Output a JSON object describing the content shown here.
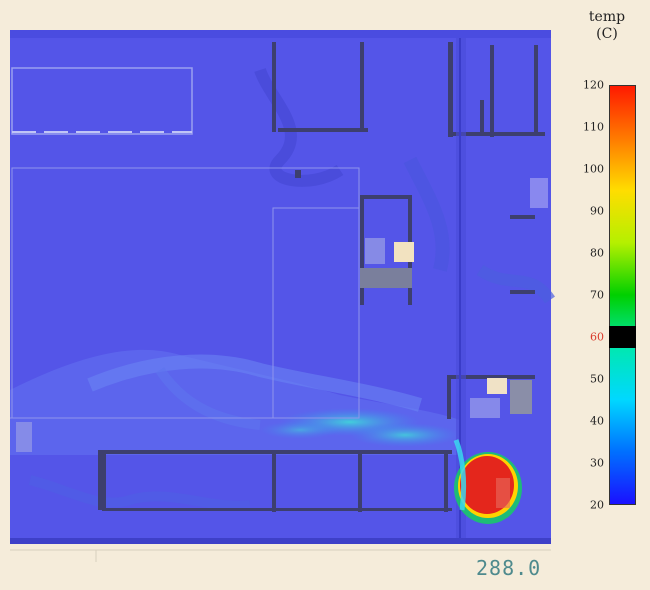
{
  "legend": {
    "title_line1": "temp",
    "title_line2": "(C)",
    "min": 20,
    "max": 120,
    "ticks": [
      {
        "label": "120",
        "value": 120
      },
      {
        "label": "110",
        "value": 110
      },
      {
        "label": "100",
        "value": 100
      },
      {
        "label": "90",
        "value": 90
      },
      {
        "label": "80",
        "value": 80
      },
      {
        "label": "70",
        "value": 70
      },
      {
        "label": "60",
        "value": 60
      },
      {
        "label": "50",
        "value": 50
      },
      {
        "label": "40",
        "value": 40
      },
      {
        "label": "30",
        "value": 30
      },
      {
        "label": "20",
        "value": 20
      }
    ],
    "highlight_value": 60,
    "highlight_color": "#d93a2b",
    "gradient_stops": [
      "#ff1a00",
      "#ff7a00",
      "#ffdd00",
      "#b5f000",
      "#00d000",
      "#00e8b0",
      "#00d8ff",
      "#0070ff",
      "#1a10ff"
    ]
  },
  "simulation": {
    "time_label": "288.0",
    "fluid_color": "#5b5ce8",
    "hot_color": "#e8231b"
  }
}
